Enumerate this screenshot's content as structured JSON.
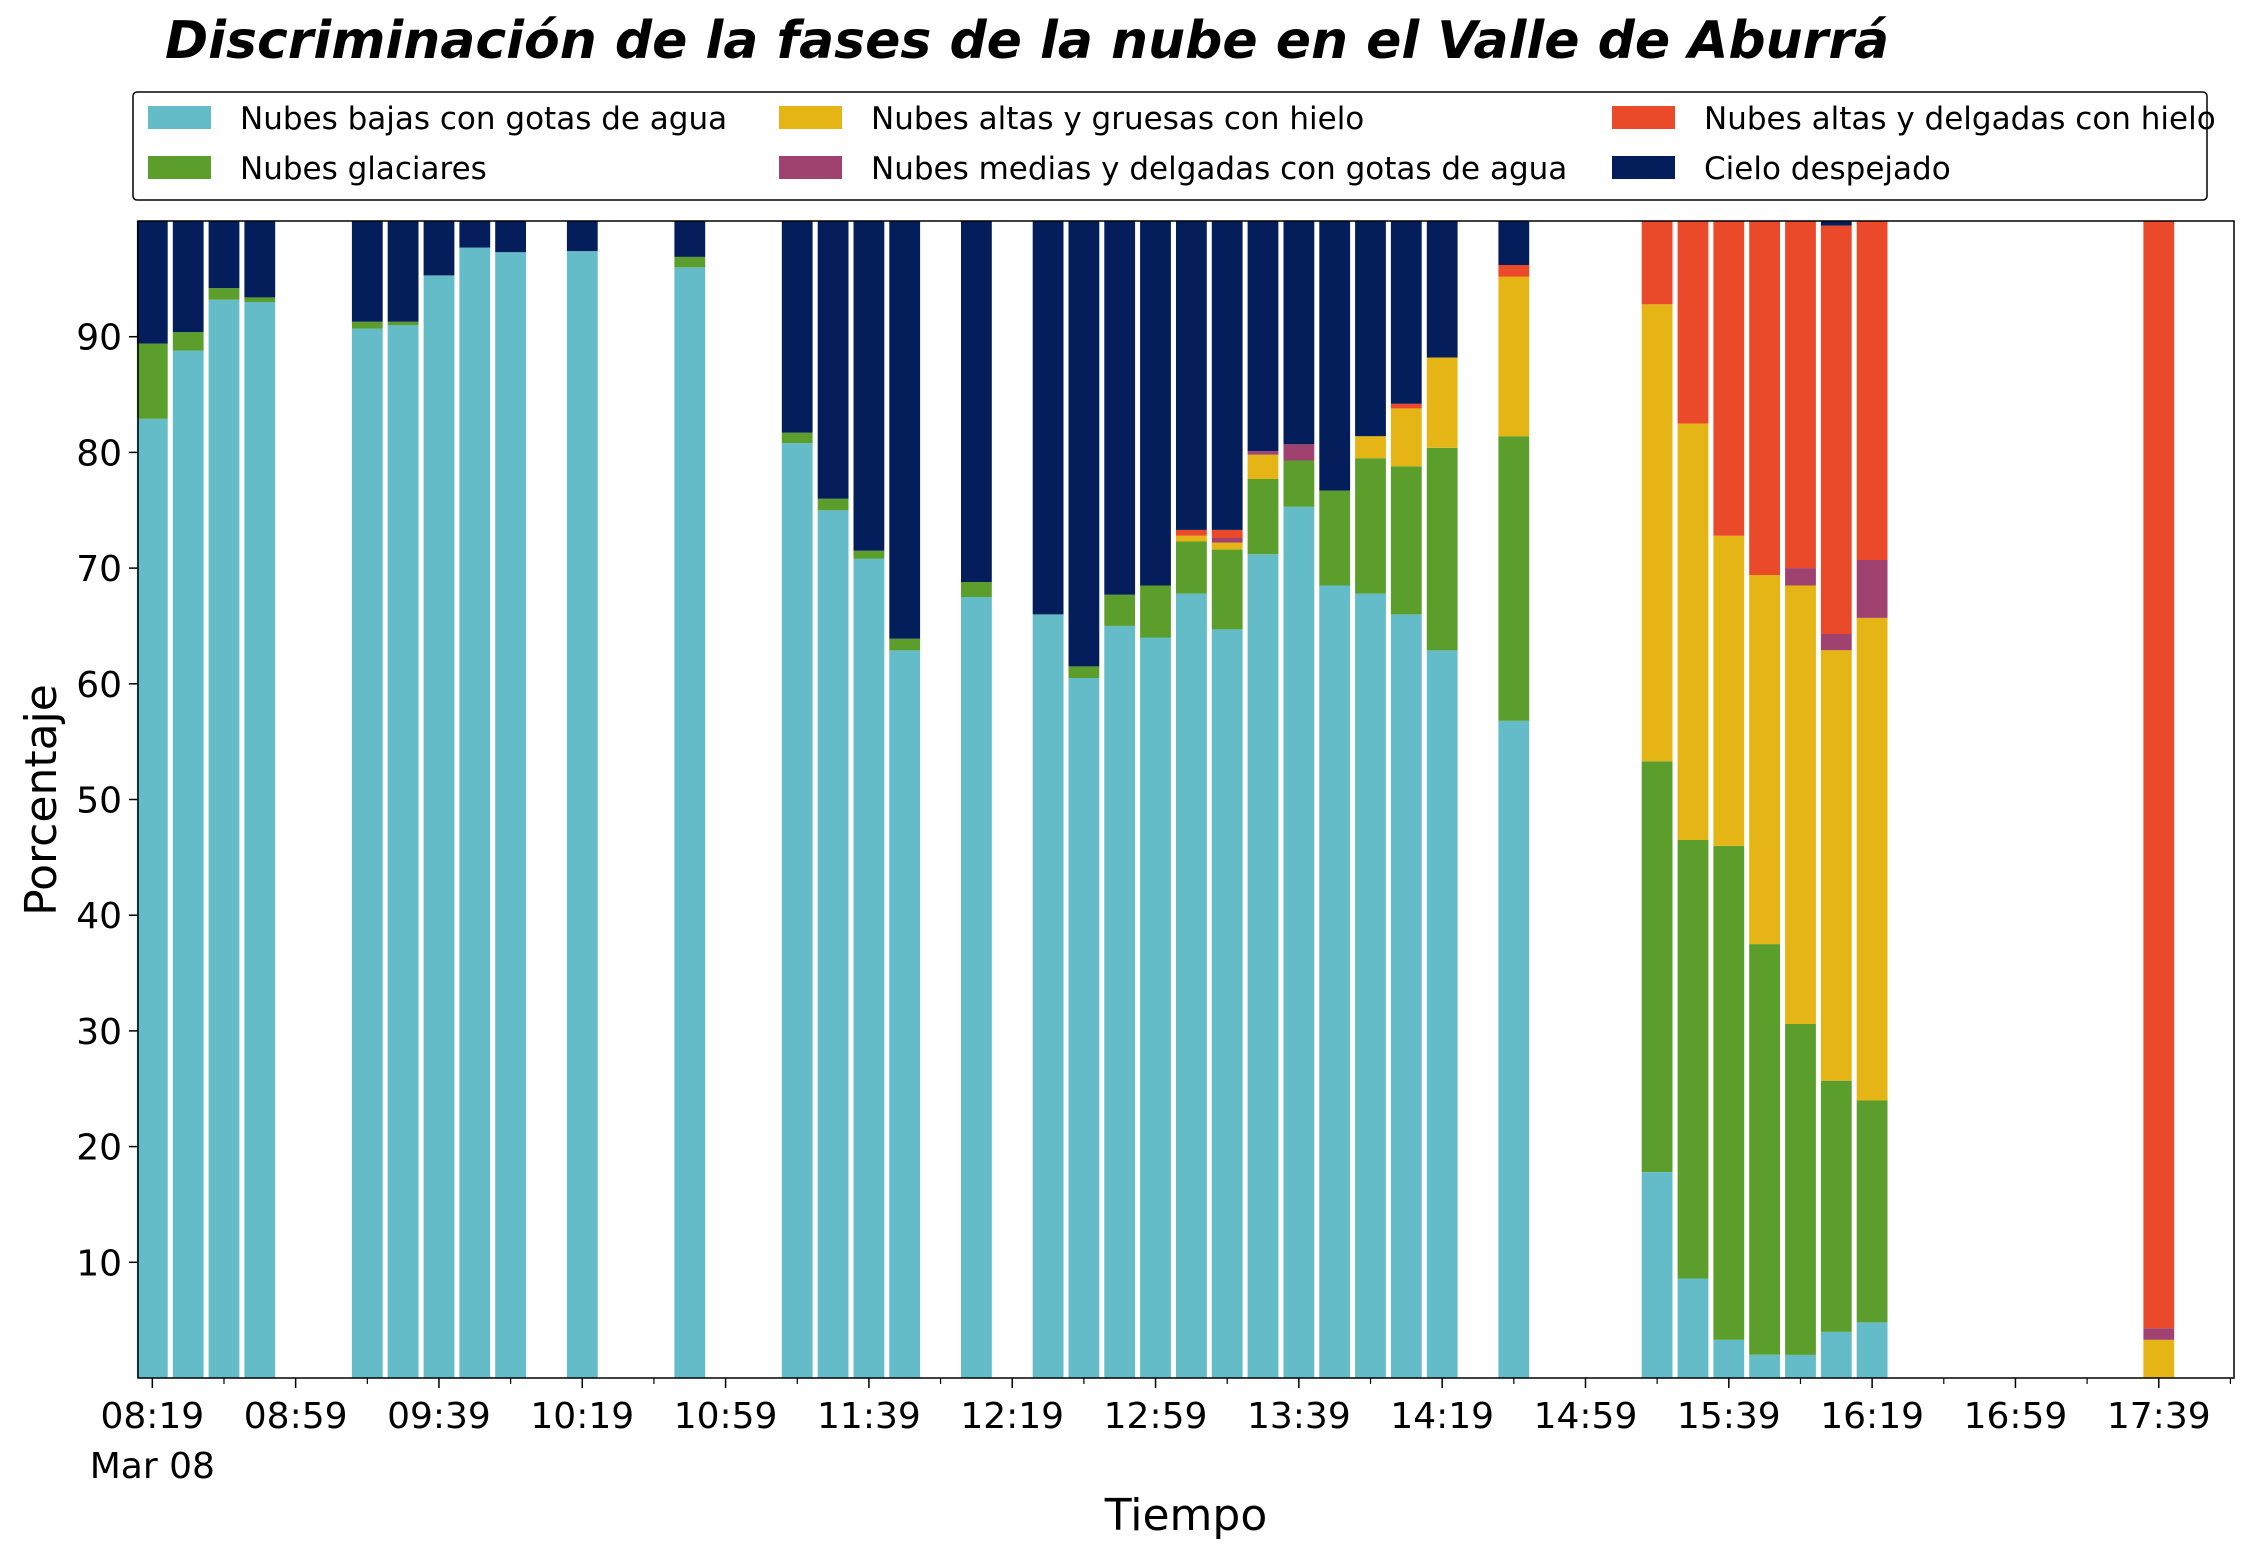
{
  "chart_data": {
    "type": "bar",
    "stacked": true,
    "title": "Discriminación de la fases de la nube en el Valle de Aburrá",
    "xlabel": "Tiempo",
    "ylabel": "Porcentaje",
    "ylim": [
      0,
      100
    ],
    "yticks": [
      10,
      20,
      30,
      40,
      50,
      60,
      70,
      80,
      90
    ],
    "xlim_minutes": [
      495,
      1080
    ],
    "xticks": [
      {
        "minute": 499,
        "label": "08:19",
        "sublabel": "Mar 08"
      },
      {
        "minute": 539,
        "label": "08:59"
      },
      {
        "minute": 579,
        "label": "09:39"
      },
      {
        "minute": 619,
        "label": "10:19"
      },
      {
        "minute": 659,
        "label": "10:59"
      },
      {
        "minute": 699,
        "label": "11:39"
      },
      {
        "minute": 739,
        "label": "12:19"
      },
      {
        "minute": 779,
        "label": "12:59"
      },
      {
        "minute": 819,
        "label": "13:39"
      },
      {
        "minute": 859,
        "label": "14:19"
      },
      {
        "minute": 899,
        "label": "14:59"
      },
      {
        "minute": 939,
        "label": "15:39"
      },
      {
        "minute": 979,
        "label": "16:19"
      },
      {
        "minute": 1019,
        "label": "16:59"
      },
      {
        "minute": 1059,
        "label": "17:39"
      }
    ],
    "legend_placement": "top, above plot, 3 columns",
    "times": [
      "08:19",
      "08:29",
      "08:39",
      "08:49",
      "09:19",
      "09:29",
      "09:39",
      "09:49",
      "09:59",
      "10:19",
      "10:49",
      "11:19",
      "11:29",
      "11:39",
      "11:49",
      "12:09",
      "12:29",
      "12:39",
      "12:49",
      "12:59",
      "13:09",
      "13:19",
      "13:29",
      "13:39",
      "13:49",
      "13:59",
      "14:09",
      "14:19",
      "14:39",
      "15:19",
      "15:29",
      "15:39",
      "15:49",
      "15:59",
      "16:09",
      "16:19",
      "17:39"
    ],
    "series": [
      {
        "name": "Nubes bajas con gotas de agua",
        "color": "#63BCC8",
        "values": [
          82.9,
          88.8,
          93.2,
          93.0,
          90.7,
          91.0,
          95.3,
          97.7,
          97.3,
          97.4,
          96.0,
          80.8,
          75.0,
          70.8,
          62.9,
          67.5,
          66.0,
          60.5,
          65.0,
          64.0,
          67.8,
          64.7,
          71.2,
          75.3,
          68.5,
          67.8,
          66.0,
          62.9,
          56.8,
          17.8,
          8.6,
          3.3,
          2.0,
          2.0,
          4.0,
          4.8,
          0
        ]
      },
      {
        "name": "Nubes glaciares",
        "color": "#5B9E2B",
        "values": [
          6.5,
          1.6,
          1.0,
          0.4,
          0.6,
          0.3,
          0,
          0,
          0,
          0,
          0.9,
          0.9,
          1.0,
          0.7,
          1.0,
          1.3,
          0,
          1.0,
          2.7,
          4.5,
          4.5,
          6.9,
          6.5,
          4.0,
          8.2,
          11.7,
          12.8,
          17.5,
          24.6,
          35.5,
          37.9,
          42.7,
          35.5,
          28.6,
          21.7,
          19.2,
          0
        ]
      },
      {
        "name": "Nubes altas y gruesas con hielo",
        "color": "#E4B515",
        "values": [
          0,
          0,
          0,
          0,
          0,
          0,
          0,
          0,
          0,
          0,
          0,
          0,
          0,
          0,
          0,
          0,
          0,
          0,
          0,
          0,
          0.5,
          0.6,
          2.1,
          0,
          0,
          1.9,
          5.0,
          7.8,
          13.8,
          39.5,
          36.0,
          26.8,
          31.9,
          37.9,
          37.2,
          41.7,
          3.3
        ]
      },
      {
        "name": "Nubes medias y delgadas con gotas de agua",
        "color": "#A0426F",
        "values": [
          0,
          0,
          0,
          0,
          0,
          0,
          0,
          0,
          0,
          0,
          0,
          0,
          0,
          0,
          0,
          0,
          0,
          0,
          0,
          0,
          0,
          0.4,
          0.3,
          1.4,
          0,
          0,
          0,
          0,
          0,
          0,
          0,
          0,
          0,
          1.5,
          1.4,
          5.0,
          1.0
        ]
      },
      {
        "name": "Nubes altas y delgadas con hielo",
        "color": "#EA4A29",
        "values": [
          0,
          0,
          0,
          0,
          0,
          0,
          0,
          0,
          0,
          0,
          0,
          0,
          0,
          0,
          0,
          0,
          0,
          0,
          0,
          0,
          0.5,
          0.7,
          0,
          0,
          0,
          0,
          0.4,
          0,
          1.0,
          7.2,
          17.5,
          27.2,
          30.6,
          30.0,
          35.3,
          29.3,
          95.7
        ]
      },
      {
        "name": "Cielo despejado",
        "color": "#041E5C",
        "values": [
          10.6,
          9.6,
          5.8,
          6.6,
          8.7,
          8.7,
          4.7,
          2.3,
          2.7,
          2.6,
          3.1,
          18.3,
          24.0,
          28.5,
          36.1,
          31.2,
          34.0,
          38.5,
          32.3,
          31.5,
          26.7,
          26.7,
          19.9,
          19.3,
          23.3,
          18.6,
          15.8,
          11.8,
          3.8,
          0,
          0,
          0,
          0,
          0,
          0.4,
          0,
          0
        ]
      }
    ]
  }
}
